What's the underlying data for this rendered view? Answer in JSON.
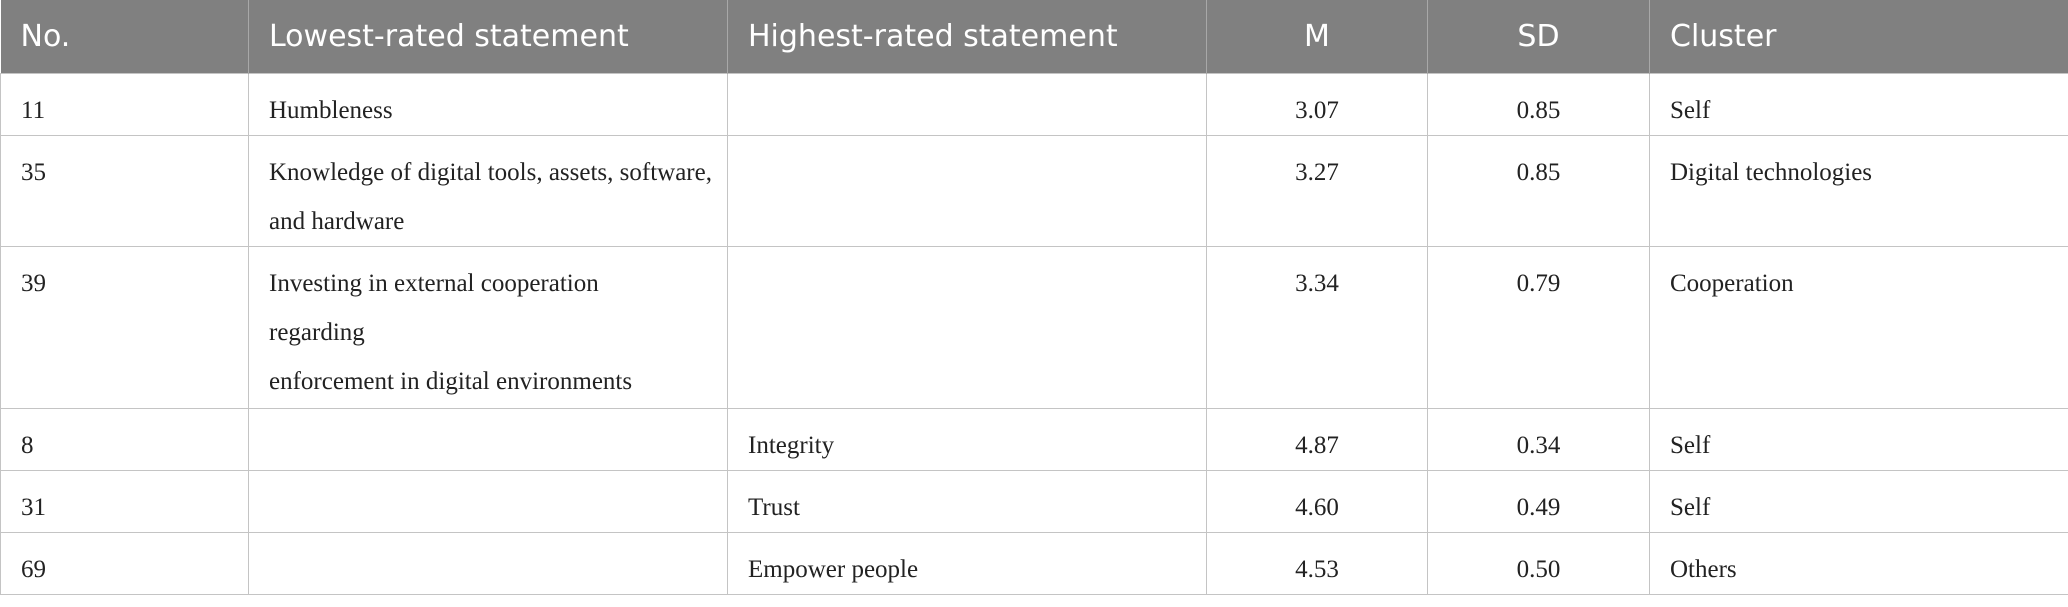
{
  "table": {
    "header": [
      "No.",
      "Lowest-rated statement",
      "Highest-rated statement",
      "M",
      "SD",
      "Cluster"
    ],
    "rows": [
      [
        "11",
        "Humbleness",
        null,
        "3.07",
        "0.85",
        "Self"
      ],
      [
        "35",
        "Knowledge of digital tools, assets, software, and hardware",
        null,
        "3.27",
        "0.85",
        "Digital technologies"
      ],
      [
        "39",
        "Investing in external cooperation\nregarding\nenforcement in digital environments",
        null,
        "3.34",
        "0.79",
        "Cooperation"
      ],
      [
        "8",
        null,
        "Integrity",
        "4.87",
        "0.34",
        "Self"
      ],
      [
        "31",
        null,
        "Trust",
        "4.60",
        "0.49",
        "Self"
      ],
      [
        "69",
        null,
        "Empower people",
        "4.53",
        "0.50",
        "Others"
      ]
    ]
  }
}
